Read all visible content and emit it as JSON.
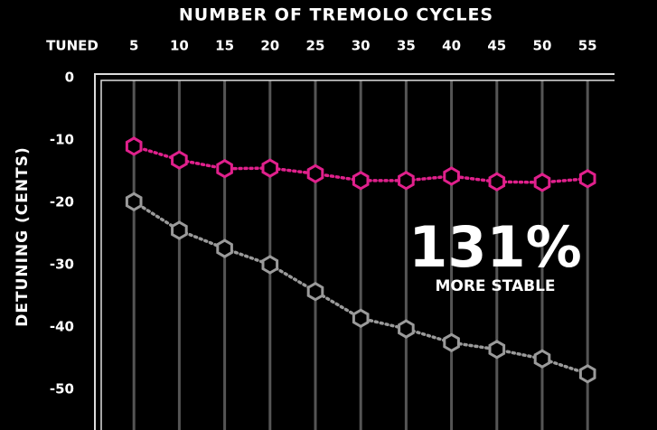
{
  "chart_data": {
    "type": "line",
    "title": "NUMBER OF TREMOLO CYCLES",
    "y_label": "DETUNING (CENTS)",
    "annotation": "131%",
    "annotation_sub": "MORE STABLE",
    "x": [
      5,
      10,
      15,
      20,
      25,
      30,
      35,
      40,
      45,
      50,
      55
    ],
    "xlim": [
      0,
      58
    ],
    "xticks": [
      {
        "value": 0,
        "label": "TUNED"
      },
      5,
      10,
      15,
      20,
      25,
      30,
      35,
      40,
      45,
      50,
      55
    ],
    "ylim": [
      0,
      -55
    ],
    "yticks": [
      0,
      -10,
      -20,
      -30,
      -40,
      -50
    ],
    "grid": true,
    "series": [
      {
        "color": "#e0208c",
        "values": [
          -11,
          -13.2,
          -14.6,
          -14.5,
          -15.4,
          -16.5,
          -16.5,
          -15.8,
          -16.7,
          -16.8,
          -16.2
        ]
      },
      {
        "color": "#9a9a9a",
        "values": [
          -19.9,
          -24.5,
          -27.4,
          -30,
          -34.3,
          -38.6,
          -40.3,
          -42.5,
          -43.6,
          -45.1,
          -47.5
        ]
      }
    ]
  }
}
